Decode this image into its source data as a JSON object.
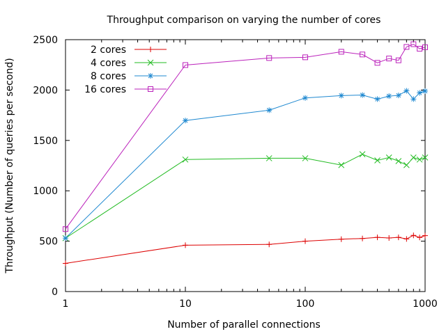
{
  "chart_data": {
    "type": "line",
    "title": "Throughput comparison on varying the number of cores",
    "xlabel": "Number of parallel connections",
    "ylabel": "Throughput (Number of queries per second)",
    "xscale": "log",
    "xlim": [
      1,
      1000
    ],
    "ylim": [
      0,
      2500
    ],
    "xticks": [
      1,
      10,
      100,
      1000
    ],
    "xtick_labels": [
      "1",
      "10",
      "100",
      "1000"
    ],
    "yticks": [
      0,
      500,
      1000,
      1500,
      2000,
      2500
    ],
    "ytick_labels": [
      "0",
      "500",
      "1000",
      "1500",
      "2000",
      "2500"
    ],
    "legend_position": "top-left",
    "x": [
      1,
      10,
      50,
      100,
      200,
      300,
      400,
      500,
      600,
      700,
      800,
      900,
      1000
    ],
    "series": [
      {
        "name": "2 cores",
        "color": "#dd0000",
        "marker": "plus",
        "values": [
          280,
          460,
          468,
          500,
          520,
          527,
          538,
          532,
          538,
          522,
          558,
          537,
          555
        ]
      },
      {
        "name": "4 cores",
        "color": "#22bb22",
        "marker": "cross",
        "values": [
          530,
          1310,
          1323,
          1323,
          1255,
          1363,
          1302,
          1330,
          1295,
          1255,
          1330,
          1310,
          1330
        ]
      },
      {
        "name": "8 cores",
        "color": "#1e88d0",
        "marker": "star",
        "values": [
          530,
          1697,
          1800,
          1922,
          1945,
          1950,
          1910,
          1940,
          1947,
          1992,
          1910,
          1972,
          1990
        ]
      },
      {
        "name": "16 cores",
        "color": "#bb22bb",
        "marker": "square",
        "values": [
          620,
          2248,
          2318,
          2325,
          2380,
          2353,
          2270,
          2313,
          2295,
          2428,
          2455,
          2410,
          2425
        ]
      }
    ]
  }
}
